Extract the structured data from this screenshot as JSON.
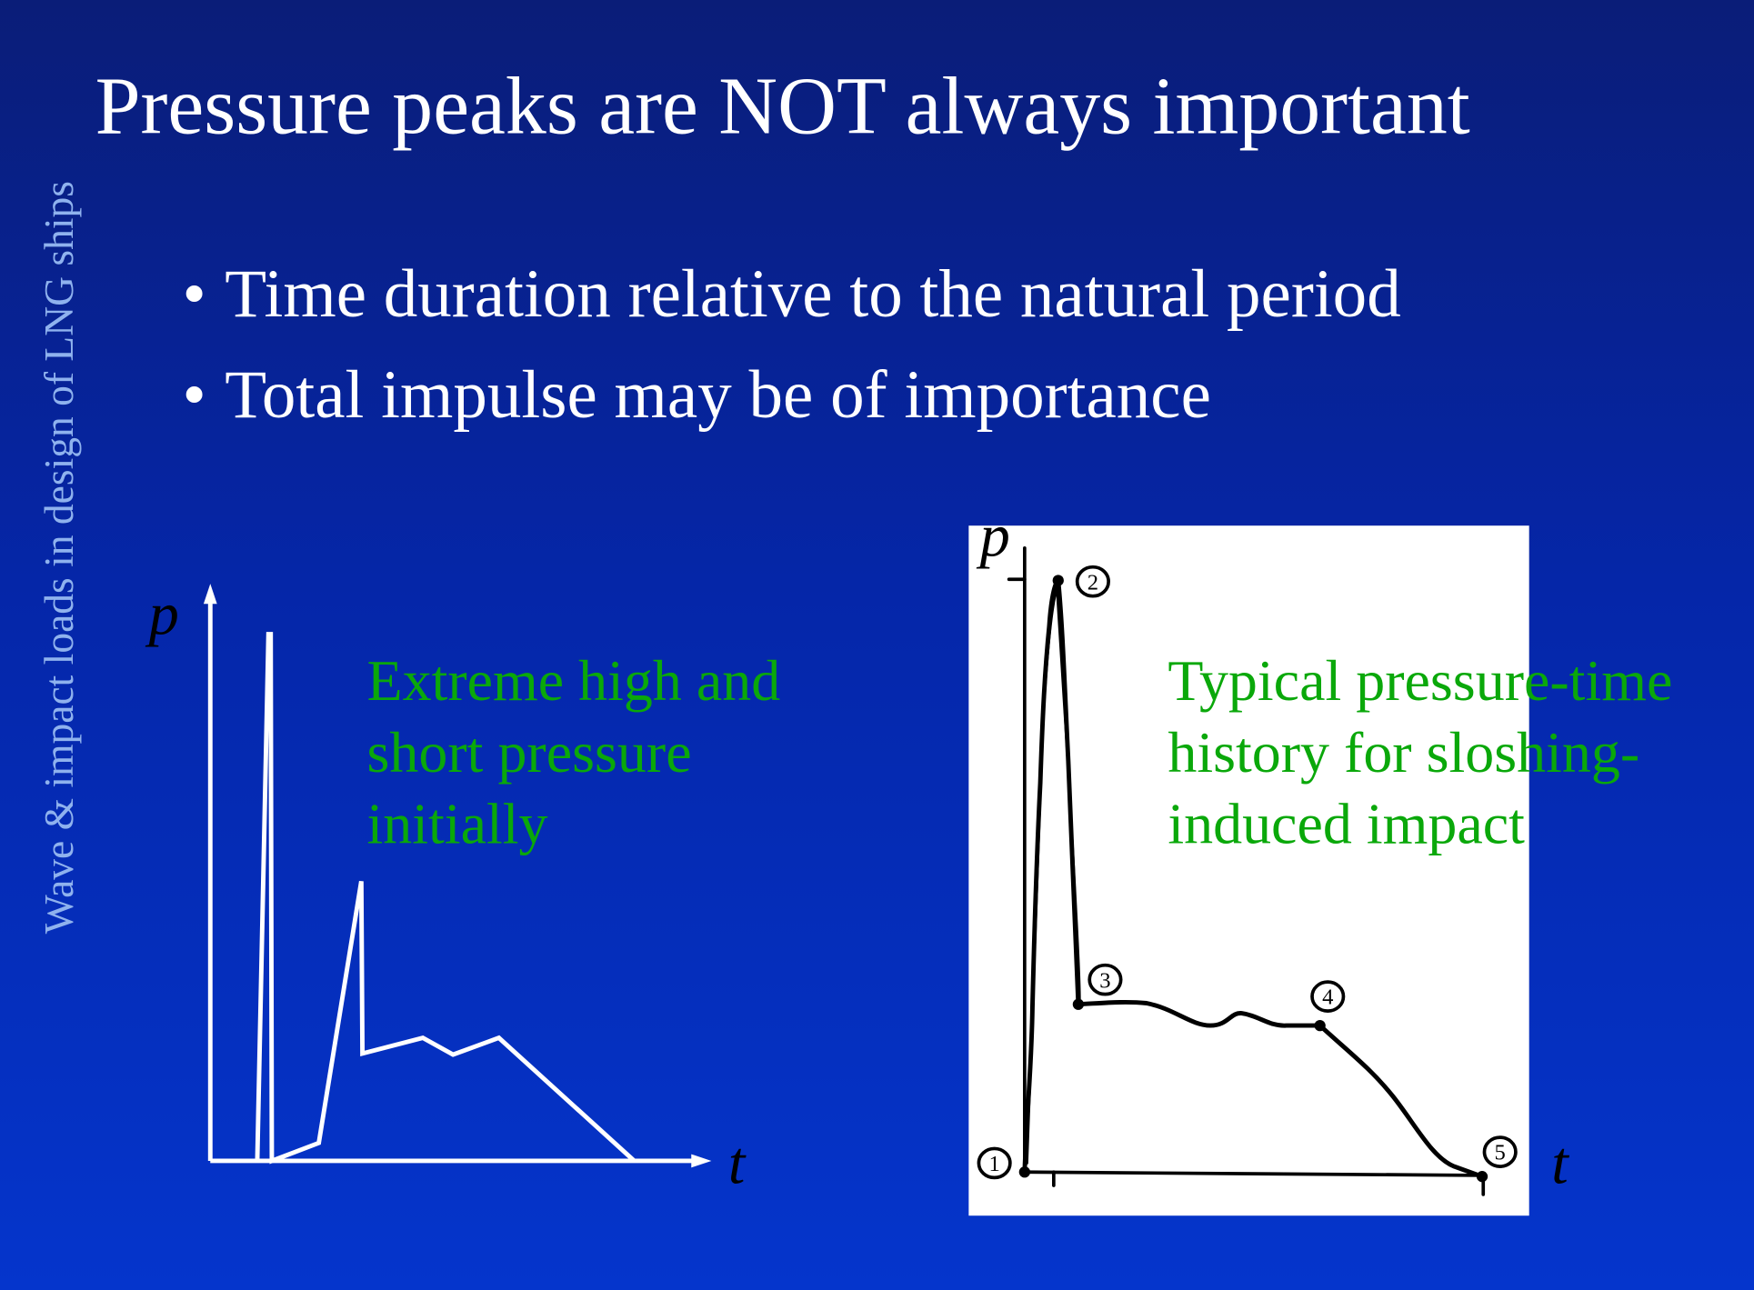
{
  "slide": {
    "title": "Pressure peaks are NOT always important",
    "side_caption": "Wave & impact loads in design of LNG ships",
    "bullets": [
      "Time duration relative to the natural period",
      "Total impulse may be of importance"
    ],
    "bullet_symbol": "•"
  },
  "left_figure": {
    "y_axis_label": "p",
    "x_axis_label": "t",
    "annotation": [
      "Extreme high and",
      "short pressure",
      "initially"
    ]
  },
  "right_figure": {
    "y_axis_label": "p",
    "x_axis_label": "t",
    "point_labels": [
      "1",
      "2",
      "3",
      "4",
      "5"
    ],
    "annotation": [
      "Typical pressure-time",
      "history for sloshing-",
      "induced impact"
    ]
  },
  "colors": {
    "background_top": "#0a1d78",
    "background_bottom": "#0535cc",
    "title": "#ffffff",
    "side_caption": "#8fb2ee",
    "annotation": "#0aa80a"
  }
}
